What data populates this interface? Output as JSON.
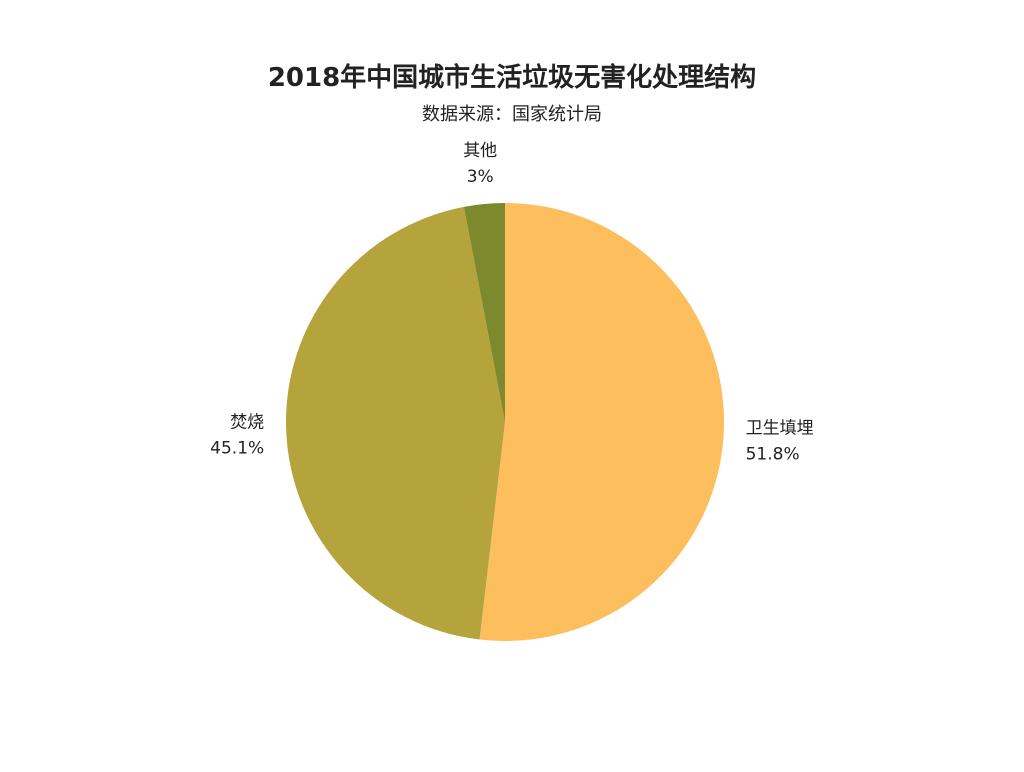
{
  "chart_data": {
    "type": "pie",
    "title": "2018年中国城市生活垃圾无害化处理结构",
    "subtitle": "数据来源：国家统计局",
    "categories": [
      "卫生填埋",
      "焚烧",
      "其他"
    ],
    "values": [
      51.8,
      45.1,
      3
    ],
    "value_labels": [
      "51.8%",
      "45.1%",
      "3%"
    ],
    "unit": "%",
    "start_angle_deg": 0,
    "direction": "clockwise",
    "colors": [
      "#FDBE5E",
      "#B5A33C",
      "#7C8A2D"
    ],
    "legend": "none"
  }
}
